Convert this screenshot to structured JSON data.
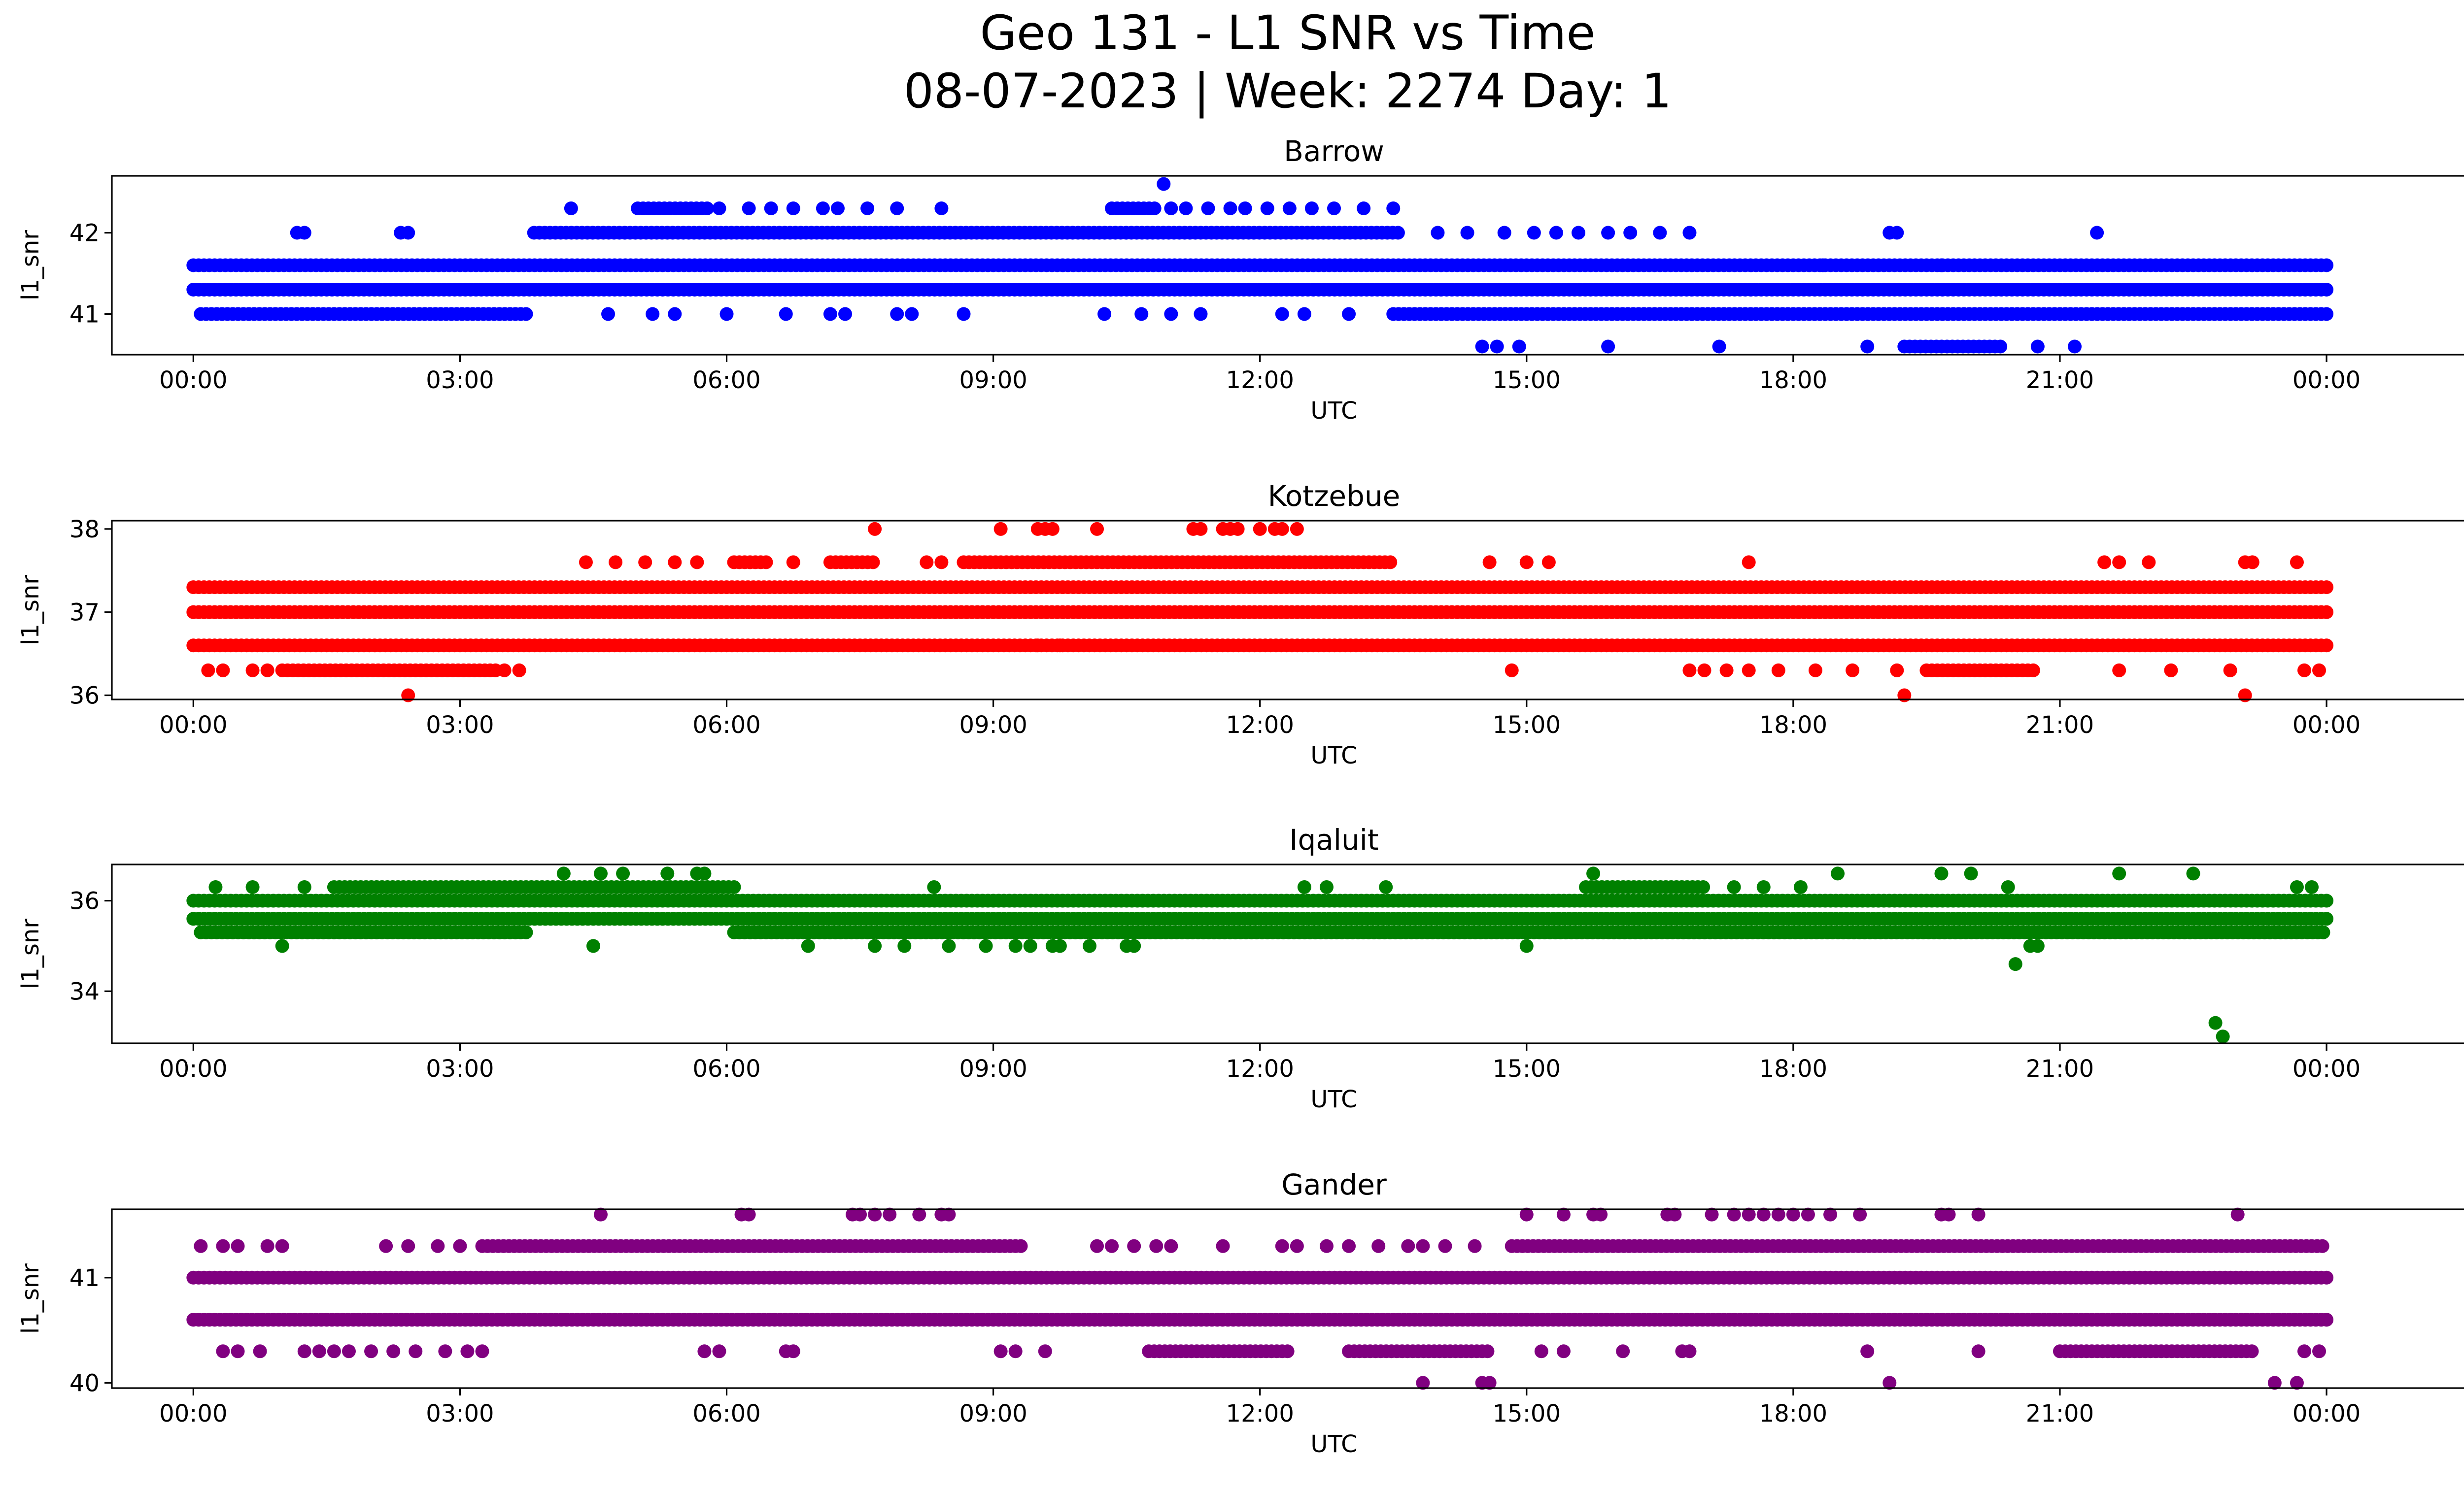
{
  "figure": {
    "title_line1": "Geo 131 - L1 SNR vs Time",
    "title_line2": "08-07-2023 | Week: 2274 Day: 1"
  },
  "chart_data": [
    {
      "type": "scatter",
      "title": "Barrow",
      "xlabel": "UTC",
      "ylabel": "l1_snr",
      "color": "#0000ff",
      "xlim": [
        "23:05",
        "26:35"
      ],
      "ylim": [
        40.5,
        42.7
      ],
      "xticks": [
        "00:00",
        "03:00",
        "06:00",
        "09:00",
        "12:00",
        "15:00",
        "18:00",
        "21:00",
        "00:00"
      ],
      "yticks": [
        41,
        42
      ],
      "levels": [
        {
          "y": 41.6,
          "ranges": [
            [
              "00:00",
              "24:00"
            ]
          ]
        },
        {
          "y": 41.3,
          "ranges": [
            [
              "00:00",
              "24:00"
            ]
          ]
        },
        {
          "y": 41.0,
          "ranges": [
            [
              "00:05",
              "03:45"
            ],
            [
              "13:30",
              "24:00"
            ]
          ]
        },
        {
          "y": 42.0,
          "ranges": [
            [
              "03:50",
              "13:35"
            ]
          ]
        },
        {
          "y": 42.3,
          "ranges": [
            [
              "05:00",
              "05:50"
            ],
            [
              "10:20",
              "10:50"
            ]
          ]
        },
        {
          "y": 40.6,
          "ranges": [
            [
              "19:15",
              "20:20"
            ]
          ]
        }
      ],
      "points": [
        [
          "01:10",
          42.0
        ],
        [
          "01:15",
          42.0
        ],
        [
          "02:20",
          42.0
        ],
        [
          "02:25",
          42.0
        ],
        [
          "04:15",
          42.3
        ],
        [
          "04:40",
          41.0
        ],
        [
          "05:10",
          41.0
        ],
        [
          "05:25",
          41.0
        ],
        [
          "05:55",
          42.3
        ],
        [
          "06:15",
          42.3
        ],
        [
          "06:30",
          42.3
        ],
        [
          "06:45",
          42.3
        ],
        [
          "07:05",
          42.3
        ],
        [
          "07:15",
          42.3
        ],
        [
          "07:35",
          42.3
        ],
        [
          "07:55",
          42.3
        ],
        [
          "08:25",
          42.3
        ],
        [
          "06:00",
          41.0
        ],
        [
          "06:40",
          41.0
        ],
        [
          "07:10",
          41.0
        ],
        [
          "07:20",
          41.0
        ],
        [
          "07:55",
          41.0
        ],
        [
          "08:05",
          41.0
        ],
        [
          "08:40",
          41.0
        ],
        [
          "10:55",
          42.6
        ],
        [
          "11:00",
          42.3
        ],
        [
          "11:10",
          42.3
        ],
        [
          "11:25",
          42.3
        ],
        [
          "11:40",
          42.3
        ],
        [
          "11:50",
          42.3
        ],
        [
          "12:05",
          42.3
        ],
        [
          "12:20",
          42.3
        ],
        [
          "12:35",
          42.3
        ],
        [
          "12:50",
          42.3
        ],
        [
          "13:10",
          42.3
        ],
        [
          "13:30",
          42.3
        ],
        [
          "10:15",
          41.0
        ],
        [
          "10:40",
          41.0
        ],
        [
          "11:00",
          41.0
        ],
        [
          "11:20",
          41.0
        ],
        [
          "12:15",
          41.0
        ],
        [
          "12:30",
          41.0
        ],
        [
          "13:00",
          41.0
        ],
        [
          "14:00",
          42.0
        ],
        [
          "14:20",
          42.0
        ],
        [
          "14:45",
          42.0
        ],
        [
          "15:05",
          42.0
        ],
        [
          "15:20",
          42.0
        ],
        [
          "15:35",
          42.0
        ],
        [
          "15:55",
          42.0
        ],
        [
          "16:10",
          42.0
        ],
        [
          "16:30",
          42.0
        ],
        [
          "16:50",
          42.0
        ],
        [
          "14:30",
          40.6
        ],
        [
          "14:40",
          40.6
        ],
        [
          "14:55",
          40.6
        ],
        [
          "15:55",
          40.6
        ],
        [
          "17:10",
          40.6
        ],
        [
          "18:50",
          40.6
        ],
        [
          "19:05",
          42.0
        ],
        [
          "19:10",
          42.0
        ],
        [
          "20:45",
          40.6
        ],
        [
          "21:10",
          40.6
        ],
        [
          "21:25",
          42.0
        ],
        [
          "19:40",
          41.6
        ],
        [
          "18:20",
          41.6
        ]
      ]
    },
    {
      "type": "scatter",
      "title": "Kotzebue",
      "xlabel": "UTC",
      "ylabel": "l1_snr",
      "color": "#ff0000",
      "xlim": [
        "23:05",
        "26:35"
      ],
      "ylim": [
        35.95,
        38.1
      ],
      "xticks": [
        "00:00",
        "03:00",
        "06:00",
        "09:00",
        "12:00",
        "15:00",
        "18:00",
        "21:00",
        "00:00"
      ],
      "yticks": [
        36,
        37,
        38
      ],
      "levels": [
        {
          "y": 37.0,
          "ranges": [
            [
              "00:00",
              "24:00"
            ]
          ]
        },
        {
          "y": 36.6,
          "ranges": [
            [
              "00:00",
              "24:00"
            ]
          ]
        },
        {
          "y": 37.3,
          "ranges": [
            [
              "00:00",
              "24:00"
            ]
          ]
        },
        {
          "y": 37.6,
          "ranges": [
            [
              "06:05",
              "06:30"
            ],
            [
              "07:10",
              "07:40"
            ],
            [
              "08:40",
              "13:30"
            ]
          ]
        },
        {
          "y": 36.3,
          "ranges": [
            [
              "01:00",
              "03:25"
            ],
            [
              "19:30",
              "20:45"
            ]
          ]
        }
      ],
      "points": [
        [
          "00:10",
          36.3
        ],
        [
          "00:20",
          36.3
        ],
        [
          "00:40",
          36.3
        ],
        [
          "00:50",
          36.3
        ],
        [
          "03:30",
          36.3
        ],
        [
          "03:40",
          36.3
        ],
        [
          "02:25",
          36.0
        ],
        [
          "07:40",
          38.0
        ],
        [
          "09:05",
          38.0
        ],
        [
          "09:30",
          38.0
        ],
        [
          "09:35",
          38.0
        ],
        [
          "09:40",
          38.0
        ],
        [
          "10:10",
          38.0
        ],
        [
          "11:15",
          38.0
        ],
        [
          "11:20",
          38.0
        ],
        [
          "11:35",
          38.0
        ],
        [
          "11:40",
          38.0
        ],
        [
          "11:45",
          38.0
        ],
        [
          "12:00",
          38.0
        ],
        [
          "12:10",
          38.0
        ],
        [
          "12:15",
          38.0
        ],
        [
          "12:25",
          38.0
        ],
        [
          "04:25",
          37.6
        ],
        [
          "04:45",
          37.6
        ],
        [
          "05:05",
          37.6
        ],
        [
          "05:25",
          37.6
        ],
        [
          "05:40",
          37.6
        ],
        [
          "06:45",
          37.6
        ],
        [
          "08:15",
          37.6
        ],
        [
          "08:25",
          37.6
        ],
        [
          "09:30",
          36.6
        ],
        [
          "09:45",
          36.6
        ],
        [
          "14:35",
          37.6
        ],
        [
          "15:00",
          37.6
        ],
        [
          "15:15",
          37.6
        ],
        [
          "14:50",
          36.3
        ],
        [
          "17:30",
          37.6
        ],
        [
          "16:50",
          36.3
        ],
        [
          "17:00",
          36.3
        ],
        [
          "17:15",
          36.3
        ],
        [
          "17:30",
          36.3
        ],
        [
          "17:50",
          36.3
        ],
        [
          "18:15",
          36.3
        ],
        [
          "18:40",
          36.3
        ],
        [
          "19:10",
          36.3
        ],
        [
          "19:15",
          36.0
        ],
        [
          "21:30",
          37.6
        ],
        [
          "21:40",
          37.6
        ],
        [
          "22:00",
          37.6
        ],
        [
          "21:40",
          36.3
        ],
        [
          "22:15",
          36.3
        ],
        [
          "23:05",
          37.6
        ],
        [
          "23:10",
          37.6
        ],
        [
          "23:40",
          37.6
        ],
        [
          "23:05",
          36.0
        ],
        [
          "22:55",
          36.3
        ],
        [
          "23:45",
          36.3
        ],
        [
          "23:55",
          36.3
        ]
      ]
    },
    {
      "type": "scatter",
      "title": "Iqaluit",
      "xlabel": "UTC",
      "ylabel": "l1_snr",
      "color": "#008000",
      "xlim": [
        "23:05",
        "26:35"
      ],
      "ylim": [
        32.85,
        36.8
      ],
      "xticks": [
        "00:00",
        "03:00",
        "06:00",
        "09:00",
        "12:00",
        "15:00",
        "18:00",
        "21:00",
        "00:00"
      ],
      "yticks": [
        34,
        36
      ],
      "levels": [
        {
          "y": 36.0,
          "ranges": [
            [
              "00:00",
              "24:00"
            ]
          ]
        },
        {
          "y": 35.6,
          "ranges": [
            [
              "00:00",
              "24:00"
            ]
          ]
        },
        {
          "y": 35.3,
          "ranges": [
            [
              "00:05",
              "03:45"
            ],
            [
              "06:05",
              "24:00"
            ]
          ]
        },
        {
          "y": 36.3,
          "ranges": [
            [
              "01:35",
              "06:05"
            ],
            [
              "15:40",
              "17:00"
            ]
          ]
        }
      ],
      "points": [
        [
          "00:15",
          36.3
        ],
        [
          "00:40",
          36.3
        ],
        [
          "01:00",
          35.0
        ],
        [
          "01:15",
          36.3
        ],
        [
          "04:10",
          36.6
        ],
        [
          "04:30",
          35.0
        ],
        [
          "04:35",
          36.6
        ],
        [
          "04:50",
          36.6
        ],
        [
          "05:20",
          36.6
        ],
        [
          "05:40",
          36.6
        ],
        [
          "05:45",
          36.6
        ],
        [
          "06:55",
          35.0
        ],
        [
          "07:40",
          35.0
        ],
        [
          "08:00",
          35.0
        ],
        [
          "08:20",
          36.3
        ],
        [
          "08:30",
          35.0
        ],
        [
          "08:55",
          35.0
        ],
        [
          "09:15",
          35.0
        ],
        [
          "09:25",
          35.0
        ],
        [
          "09:40",
          35.0
        ],
        [
          "09:45",
          35.0
        ],
        [
          "10:05",
          35.0
        ],
        [
          "10:30",
          35.0
        ],
        [
          "10:35",
          35.0
        ],
        [
          "12:30",
          36.3
        ],
        [
          "12:45",
          36.3
        ],
        [
          "13:25",
          36.3
        ],
        [
          "15:00",
          35.0
        ],
        [
          "15:45",
          36.6
        ],
        [
          "18:30",
          36.6
        ],
        [
          "17:20",
          36.3
        ],
        [
          "17:40",
          36.3
        ],
        [
          "18:05",
          36.3
        ],
        [
          "19:40",
          36.6
        ],
        [
          "20:00",
          36.6
        ],
        [
          "20:25",
          36.3
        ],
        [
          "20:30",
          34.6
        ],
        [
          "20:45",
          35.0
        ],
        [
          "20:40",
          35.0
        ],
        [
          "21:40",
          36.6
        ],
        [
          "22:30",
          36.6
        ],
        [
          "22:45",
          33.3
        ],
        [
          "22:50",
          33.0
        ],
        [
          "23:40",
          36.3
        ],
        [
          "23:50",
          36.3
        ]
      ]
    },
    {
      "type": "scatter",
      "title": "Gander",
      "xlabel": "UTC",
      "ylabel": "l1_snr",
      "color": "#800080",
      "xlim": [
        "23:05",
        "26:35"
      ],
      "ylim": [
        39.95,
        41.65
      ],
      "xticks": [
        "00:00",
        "03:00",
        "06:00",
        "09:00",
        "12:00",
        "15:00",
        "18:00",
        "21:00",
        "00:00"
      ],
      "yticks": [
        40,
        41
      ],
      "levels": [
        {
          "y": 41.0,
          "ranges": [
            [
              "00:00",
              "24:00"
            ]
          ]
        },
        {
          "y": 40.6,
          "ranges": [
            [
              "00:00",
              "24:00"
            ]
          ]
        },
        {
          "y": 41.3,
          "ranges": [
            [
              "03:15",
              "09:20"
            ],
            [
              "14:50",
              "24:00"
            ]
          ]
        },
        {
          "y": 40.3,
          "ranges": [
            [
              "10:45",
              "12:20"
            ],
            [
              "13:00",
              "14:35"
            ],
            [
              "21:00",
              "23:10"
            ]
          ]
        }
      ],
      "points": [
        [
          "00:05",
          41.3
        ],
        [
          "00:20",
          41.3
        ],
        [
          "00:30",
          41.3
        ],
        [
          "00:50",
          41.3
        ],
        [
          "01:00",
          41.3
        ],
        [
          "02:10",
          41.3
        ],
        [
          "02:25",
          41.3
        ],
        [
          "02:45",
          41.3
        ],
        [
          "03:00",
          41.3
        ],
        [
          "00:20",
          40.3
        ],
        [
          "00:30",
          40.3
        ],
        [
          "00:45",
          40.3
        ],
        [
          "01:15",
          40.3
        ],
        [
          "01:25",
          40.3
        ],
        [
          "01:35",
          40.3
        ],
        [
          "01:45",
          40.3
        ],
        [
          "02:00",
          40.3
        ],
        [
          "02:15",
          40.3
        ],
        [
          "02:30",
          40.3
        ],
        [
          "02:50",
          40.3
        ],
        [
          "03:05",
          40.3
        ],
        [
          "03:15",
          40.3
        ],
        [
          "04:35",
          41.6
        ],
        [
          "06:10",
          41.6
        ],
        [
          "06:15",
          41.6
        ],
        [
          "07:25",
          41.6
        ],
        [
          "07:30",
          41.6
        ],
        [
          "07:40",
          41.6
        ],
        [
          "07:50",
          41.6
        ],
        [
          "08:10",
          41.6
        ],
        [
          "08:25",
          41.6
        ],
        [
          "08:30",
          41.6
        ],
        [
          "05:45",
          40.3
        ],
        [
          "05:55",
          40.3
        ],
        [
          "06:40",
          40.3
        ],
        [
          "06:45",
          40.3
        ],
        [
          "09:05",
          40.3
        ],
        [
          "09:15",
          40.3
        ],
        [
          "09:35",
          40.3
        ],
        [
          "10:10",
          41.3
        ],
        [
          "10:20",
          41.3
        ],
        [
          "10:35",
          41.3
        ],
        [
          "10:50",
          41.3
        ],
        [
          "11:00",
          41.3
        ],
        [
          "11:35",
          41.3
        ],
        [
          "12:15",
          41.3
        ],
        [
          "12:25",
          41.3
        ],
        [
          "12:45",
          41.3
        ],
        [
          "13:00",
          41.3
        ],
        [
          "13:20",
          41.3
        ],
        [
          "13:40",
          41.3
        ],
        [
          "13:50",
          41.3
        ],
        [
          "14:05",
          41.3
        ],
        [
          "14:25",
          41.3
        ],
        [
          "13:50",
          40.0
        ],
        [
          "14:30",
          40.0
        ],
        [
          "14:35",
          40.0
        ],
        [
          "15:00",
          41.6
        ],
        [
          "15:25",
          41.6
        ],
        [
          "15:45",
          41.6
        ],
        [
          "15:50",
          41.6
        ],
        [
          "16:35",
          41.6
        ],
        [
          "16:40",
          41.6
        ],
        [
          "17:05",
          41.6
        ],
        [
          "17:20",
          41.6
        ],
        [
          "17:30",
          41.6
        ],
        [
          "17:40",
          41.6
        ],
        [
          "17:50",
          41.6
        ],
        [
          "18:00",
          41.6
        ],
        [
          "18:10",
          41.6
        ],
        [
          "18:25",
          41.6
        ],
        [
          "18:45",
          41.6
        ],
        [
          "19:40",
          41.6
        ],
        [
          "19:45",
          41.6
        ],
        [
          "20:05",
          41.6
        ],
        [
          "15:10",
          40.3
        ],
        [
          "15:25",
          40.3
        ],
        [
          "16:05",
          40.3
        ],
        [
          "16:45",
          40.3
        ],
        [
          "16:50",
          40.3
        ],
        [
          "18:50",
          40.3
        ],
        [
          "19:05",
          40.0
        ],
        [
          "20:05",
          40.3
        ],
        [
          "23:00",
          41.6
        ],
        [
          "23:25",
          40.0
        ],
        [
          "23:40",
          40.0
        ],
        [
          "23:45",
          40.3
        ],
        [
          "23:55",
          40.3
        ]
      ]
    }
  ]
}
